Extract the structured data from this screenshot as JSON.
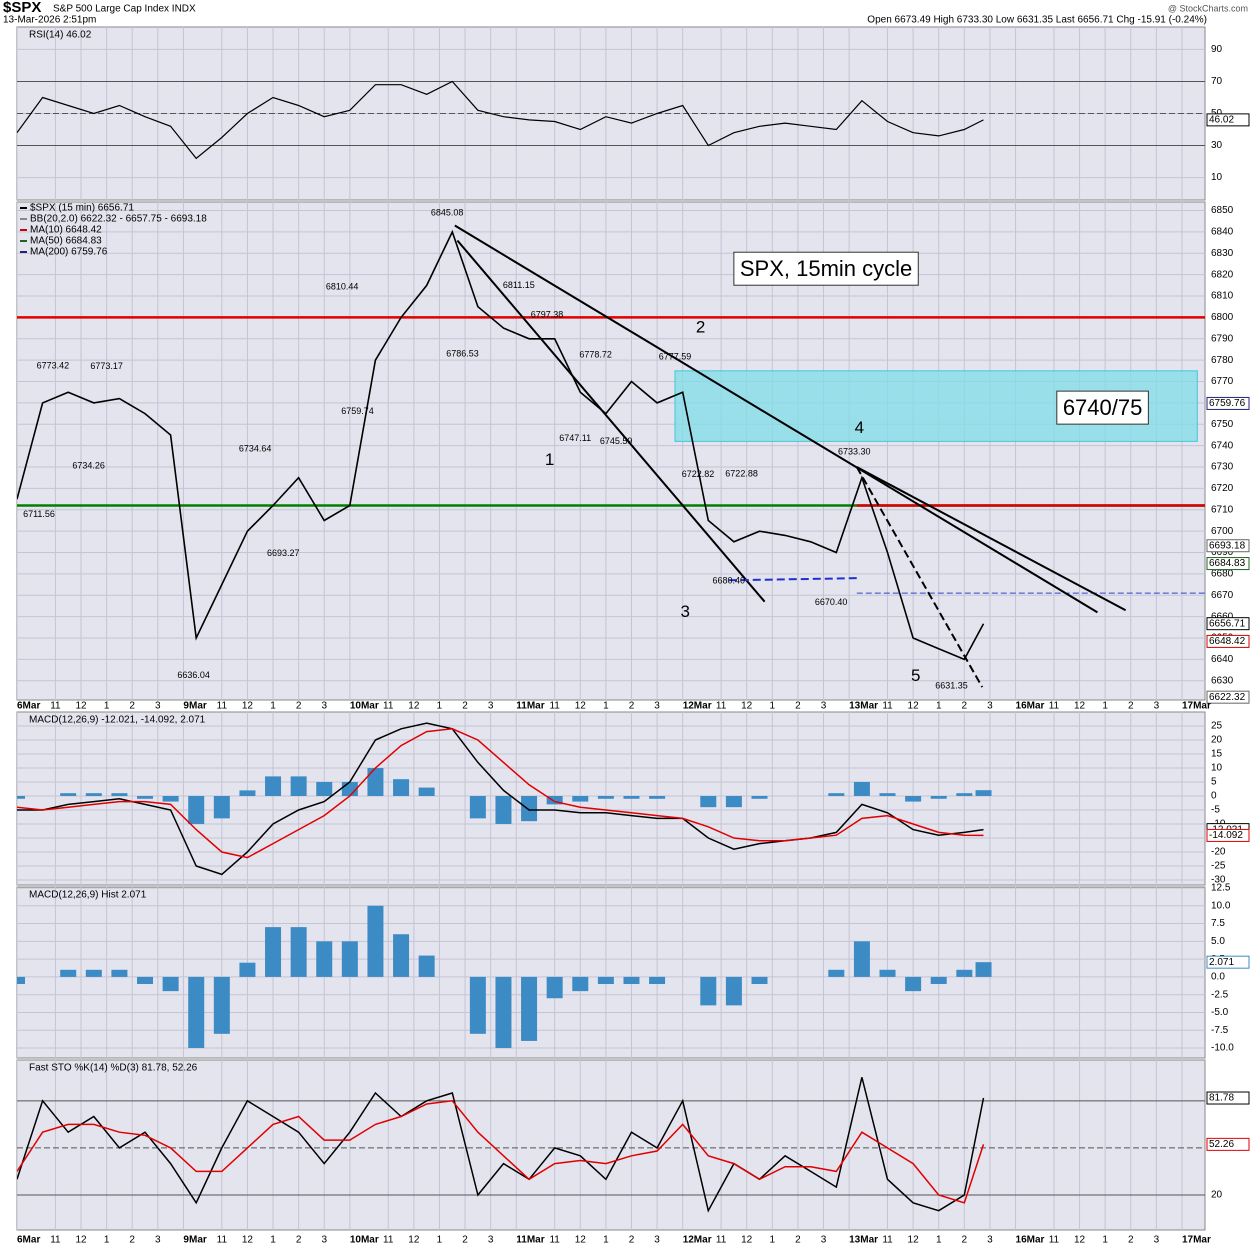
{
  "header": {
    "symbol": "$SPX",
    "name": "S&P 500 Large Cap Index  INDX",
    "date": "13-Mar-2026 2:51pm",
    "quote": "Open 6673.49  High 6733.30  Low 6631.35  Last 6656.71  Chg -15.91 (-0.24%)",
    "credit": "@ StockCharts.com"
  },
  "chart_data": [
    {
      "type": "line",
      "title": "RSI(14) 46.02",
      "xlim": [
        0,
        46.4
      ],
      "ylim": [
        -4,
        104
      ],
      "yticks": [
        10,
        30,
        50,
        70,
        90
      ],
      "color": "#000000",
      "levels": [
        {
          "value": 70,
          "color": "#555555"
        },
        {
          "value": 30,
          "color": "#555555"
        },
        {
          "value": 50,
          "color": "#555555",
          "dash": true
        }
      ],
      "x": [
        0,
        1,
        2,
        3,
        4,
        5,
        6,
        7,
        8,
        9,
        10,
        11,
        12,
        13,
        14,
        15,
        16,
        17,
        18,
        19,
        20,
        21,
        22,
        23,
        24,
        25,
        26,
        27,
        28,
        29,
        30,
        31,
        32,
        33,
        34,
        35,
        36,
        37,
        37.75
      ],
      "values": [
        38,
        60,
        55,
        50,
        55,
        48,
        42,
        22,
        35,
        50,
        60,
        55,
        48,
        52,
        68,
        68,
        62,
        70,
        52,
        48,
        46,
        45,
        40,
        48,
        44,
        50,
        55,
        30,
        38,
        42,
        44,
        42,
        40,
        58,
        45,
        38,
        36,
        40,
        46.02
      ]
    },
    {
      "type": "line",
      "color": "#000000",
      "xlim": [
        0,
        46.4
      ],
      "ylim": [
        6621,
        6854
      ],
      "yticks": [
        6630,
        6640,
        6650,
        6660,
        6670,
        6680,
        6690,
        6700,
        6710,
        6720,
        6730,
        6740,
        6750,
        6760,
        6770,
        6780,
        6790,
        6800,
        6810,
        6820,
        6830,
        6840,
        6850
      ],
      "legend": [
        {
          "text": "$SPX (15 min) 6656.71",
          "color": "#000000"
        },
        {
          "text": "BB(20,2.0) 6622.32 - 6657.75 - 6693.18",
          "color": "#888888"
        },
        {
          "text": "MA(10) 6648.42",
          "color": "#d00000"
        },
        {
          "text": "MA(50) 6684.83",
          "color": "#206020"
        },
        {
          "text": "MA(200) 6759.76",
          "color": "#202080"
        }
      ],
      "xticks": [
        {
          "value": 0,
          "label": "6Mar"
        },
        {
          "value": 1.5,
          "label": "11"
        },
        {
          "value": 2.5,
          "label": "12"
        },
        {
          "value": 3.5,
          "label": "1"
        },
        {
          "value": 4.5,
          "label": "2"
        },
        {
          "value": 5.5,
          "label": "3"
        },
        {
          "value": 6.5,
          "label": "9Mar"
        },
        {
          "value": 8,
          "label": "11"
        },
        {
          "value": 9,
          "label": "12"
        },
        {
          "value": 10,
          "label": "1"
        },
        {
          "value": 11,
          "label": "2"
        },
        {
          "value": 12,
          "label": "3"
        },
        {
          "value": 13,
          "label": "10Mar"
        },
        {
          "value": 14.5,
          "label": "11"
        },
        {
          "value": 15.5,
          "label": "12"
        },
        {
          "value": 16.5,
          "label": "1"
        },
        {
          "value": 17.5,
          "label": "2"
        },
        {
          "value": 18.5,
          "label": "3"
        },
        {
          "value": 19.5,
          "label": "11Mar"
        },
        {
          "value": 21,
          "label": "11"
        },
        {
          "value": 22,
          "label": "12"
        },
        {
          "value": 23,
          "label": "1"
        },
        {
          "value": 24,
          "label": "2"
        },
        {
          "value": 25,
          "label": "3"
        },
        {
          "value": 26,
          "label": "12Mar"
        },
        {
          "value": 27.5,
          "label": "11"
        },
        {
          "value": 28.5,
          "label": "12"
        },
        {
          "value": 29.5,
          "label": "1"
        },
        {
          "value": 30.5,
          "label": "2"
        },
        {
          "value": 31.5,
          "label": "3"
        },
        {
          "value": 32.5,
          "label": "13Mar"
        },
        {
          "value": 34,
          "label": "11"
        },
        {
          "value": 35,
          "label": "12"
        },
        {
          "value": 36,
          "label": "1"
        },
        {
          "value": 37,
          "label": "2"
        },
        {
          "value": 38,
          "label": "3"
        },
        {
          "value": 39,
          "label": "16Mar"
        },
        {
          "value": 40.5,
          "label": "11"
        },
        {
          "value": 41.5,
          "label": "12"
        },
        {
          "value": 42.5,
          "label": "1"
        },
        {
          "value": 43.5,
          "label": "2"
        },
        {
          "value": 44.5,
          "label": "3"
        },
        {
          "value": 45.5,
          "label": "17Mar"
        }
      ],
      "x": [
        0,
        1,
        2,
        3,
        4,
        5,
        6,
        7,
        8,
        9,
        10,
        11,
        12,
        13,
        14,
        15,
        16,
        17,
        18,
        19,
        20,
        21,
        22,
        23,
        24,
        25,
        26,
        27,
        28,
        29,
        30,
        31,
        32,
        33,
        34,
        35,
        36,
        37,
        37.75
      ],
      "values": [
        6715,
        6760,
        6765,
        6760,
        6762,
        6755,
        6745,
        6650,
        6675,
        6700,
        6712,
        6725,
        6705,
        6712,
        6780,
        6800,
        6815,
        6840,
        6805,
        6795,
        6790,
        6790,
        6765,
        6755,
        6770,
        6760,
        6765,
        6705,
        6695,
        6700,
        6698,
        6695,
        6690,
        6725,
        6690,
        6650,
        6645,
        6640,
        6656.71
      ],
      "zone": {
        "x": [
          25.7,
          46.1
        ],
        "values": [
          6742,
          6775
        ]
      },
      "levels": [
        {
          "value": 6800,
          "color": "#e00000"
        },
        {
          "value": 6712,
          "color": "#008000"
        },
        {
          "value": 6712,
          "color": "#e00000",
          "from": 32.8
        },
        {
          "value": 6671,
          "color": "#3040d0",
          "dash": true,
          "from": 32.8
        }
      ],
      "trendlines": [
        {
          "x": [
            17.1,
            42.2
          ],
          "values": [
            6843,
            6662
          ]
        },
        {
          "x": [
            32.8,
            43.3
          ],
          "values": [
            6730,
            6663
          ]
        },
        {
          "x": [
            32.8,
            37.7
          ],
          "values": [
            6730,
            6627
          ],
          "dash": true
        },
        {
          "x": [
            17.2,
            29.2
          ],
          "values": [
            6836,
            6667
          ]
        },
        {
          "x": [
            27.8,
            32.8
          ],
          "values": [
            6677,
            6678
          ],
          "dash": true,
          "color": "#2030d0"
        }
      ],
      "price_labels": [
        {
          "x": 16.8,
          "value": 6845.08,
          "side": "above"
        },
        {
          "x": 12.7,
          "value": 6810.44,
          "side": "above"
        },
        {
          "x": 19.6,
          "value": 6811.15,
          "side": "above"
        },
        {
          "x": 20.7,
          "value": 6797.38,
          "side": "above"
        },
        {
          "x": 17.4,
          "value": 6786.53,
          "side": "below"
        },
        {
          "x": 22.6,
          "value": 6778.72,
          "side": "above"
        },
        {
          "x": 25.7,
          "value": 6777.59,
          "side": "above"
        },
        {
          "x": 1.4,
          "value": 6773.42,
          "side": "above"
        },
        {
          "x": 3.5,
          "value": 6773.17,
          "side": "above"
        },
        {
          "x": 9.3,
          "value": 6734.64,
          "side": "above"
        },
        {
          "x": 2.8,
          "value": 6734.26,
          "side": "below"
        },
        {
          "x": 13.3,
          "value": 6759.74,
          "side": "below"
        },
        {
          "x": 21.8,
          "value": 6747.11,
          "side": "below"
        },
        {
          "x": 23.4,
          "value": 6745.59,
          "side": "below"
        },
        {
          "x": 26.6,
          "value": 6722.82,
          "side": "above"
        },
        {
          "x": 28.3,
          "value": 6722.88,
          "side": "above"
        },
        {
          "x": 32.7,
          "value": 6733.3,
          "label": "6733.30",
          "side": "above"
        },
        {
          "x": 0,
          "value": 6711.56,
          "side": "below"
        },
        {
          "x": 10.4,
          "value": 6693.27,
          "side": "below"
        },
        {
          "x": 27.8,
          "value": 6680.4,
          "label": "6680.40",
          "side": "below"
        },
        {
          "x": 31.8,
          "value": 6670.4,
          "label": "6670.40",
          "side": "below"
        },
        {
          "x": 6.9,
          "value": 6636.04,
          "side": "below"
        },
        {
          "x": 36.5,
          "value": 6631.35,
          "side": "below"
        }
      ],
      "annotations": [
        {
          "text": "1",
          "x": 20.8,
          "y": 6733,
          "color": "#e00000"
        },
        {
          "text": "2",
          "x": 26.7,
          "y": 6795,
          "color": "#e00000"
        },
        {
          "text": "3",
          "x": 26.1,
          "y": 6662,
          "color": "#e00000"
        },
        {
          "text": "4",
          "x": 32.9,
          "y": 6748,
          "color": "#e00000"
        },
        {
          "text": "5",
          "x": 35.1,
          "y": 6632,
          "color": "#e00000"
        },
        {
          "text": "SPX, 15min cycle",
          "x": 31.6,
          "y": 6822,
          "color": "#000000",
          "box": true
        },
        {
          "text": "6740/75",
          "x": 42.4,
          "y": 6757,
          "color": "#000000",
          "box": true
        }
      ],
      "last_labels": [
        {
          "value": 6759.76,
          "color": "#202080"
        },
        {
          "value": 6693.18,
          "color": "#666666"
        },
        {
          "value": 6684.83,
          "color": "#206020"
        },
        {
          "value": 6648.42,
          "color": "#d00000"
        },
        {
          "value": 6622.32,
          "color": "#666666"
        }
      ]
    },
    {
      "type": "line",
      "title": "MACD(12,26,9) -12.021, -14.092, 2.071",
      "xlim": [
        0,
        46.4
      ],
      "ylim": [
        -31.8,
        30
      ],
      "yticks": [
        25,
        20,
        15,
        10,
        5,
        0,
        -5,
        -10,
        -15,
        -20,
        -25,
        -30
      ],
      "x": [
        0,
        1,
        2,
        3,
        4,
        5,
        6,
        7,
        8,
        9,
        10,
        11,
        12,
        13,
        14,
        15,
        16,
        17,
        18,
        19,
        20,
        21,
        22,
        23,
        24,
        25,
        26,
        27,
        28,
        29,
        30,
        31,
        32,
        33,
        34,
        35,
        36,
        37,
        37.75
      ],
      "series": [
        {
          "color": "#000000",
          "values": [
            -5,
            -5,
            -3,
            -2,
            -1,
            -3,
            -5,
            -25,
            -28,
            -20,
            -10,
            -5,
            -2,
            5,
            20,
            24,
            26,
            24,
            12,
            2,
            -5,
            -5,
            -6,
            -6,
            -7,
            -8,
            -8,
            -15,
            -19,
            -17,
            -16,
            -15,
            -13,
            -3,
            -6,
            -12,
            -14,
            -13,
            -12.021
          ]
        },
        {
          "color": "#e00000",
          "values": [
            -4,
            -5,
            -4,
            -3,
            -2,
            -2,
            -3,
            -12,
            -20,
            -22,
            -17,
            -12,
            -7,
            0,
            10,
            18,
            23,
            24,
            20,
            12,
            4,
            -2,
            -4,
            -5,
            -6,
            -7,
            -8,
            -11,
            -15,
            -16,
            -16,
            -15,
            -14,
            -8,
            -7,
            -10,
            -13,
            -14,
            -14.092
          ]
        }
      ]
    },
    {
      "type": "bar",
      "title": "MACD(12,26,9) Hist 2.071",
      "color": "#3d8bc4",
      "xlim": [
        0,
        46.4
      ],
      "ylim": [
        -11.4,
        12.64
      ],
      "yticks": [
        12.5,
        {
          "value": 10,
          "label": "10.0"
        },
        7.5,
        {
          "value": 5,
          "label": "5.0"
        },
        2.5,
        {
          "value": 0,
          "label": "0.0"
        },
        -2.5,
        {
          "value": -5,
          "label": "-5.0"
        },
        -7.5,
        {
          "value": -10,
          "label": "-10.0"
        }
      ],
      "x": [
        0,
        1,
        2,
        3,
        4,
        5,
        6,
        7,
        8,
        9,
        10,
        11,
        12,
        13,
        14,
        15,
        16,
        17,
        18,
        19,
        20,
        21,
        22,
        23,
        24,
        25,
        26,
        27,
        28,
        29,
        30,
        31,
        32,
        33,
        34,
        35,
        36,
        37,
        37.75
      ],
      "values": [
        -1,
        0,
        1,
        1,
        1,
        -1,
        -2,
        -10,
        -8,
        2,
        7,
        7,
        5,
        5,
        10,
        6,
        3,
        0,
        -8,
        -10,
        -9,
        -3,
        -2,
        -1,
        -1,
        -1,
        0,
        -4,
        -4,
        -1,
        0,
        0,
        1,
        5,
        1,
        -2,
        -1,
        1,
        2.071
      ]
    },
    {
      "type": "line",
      "title": "Fast STO %K(14) %D(3) 81.78, 52.26",
      "xlim": [
        0,
        46.4
      ],
      "ylim": [
        -2.3,
        106
      ],
      "yticks": [
        20
      ],
      "levels": [
        {
          "value": 80,
          "color": "#555555"
        },
        {
          "value": 50,
          "color": "#555555",
          "dash": true
        },
        {
          "value": 20,
          "color": "#555555"
        }
      ],
      "x": [
        0,
        1,
        2,
        3,
        4,
        5,
        6,
        7,
        8,
        9,
        10,
        11,
        12,
        13,
        14,
        15,
        16,
        17,
        18,
        19,
        20,
        21,
        22,
        23,
        24,
        25,
        26,
        27,
        28,
        29,
        30,
        31,
        32,
        33,
        34,
        35,
        36,
        37,
        37.75
      ],
      "series": [
        {
          "color": "#000000",
          "values": [
            30,
            80,
            60,
            70,
            50,
            60,
            40,
            15,
            50,
            80,
            70,
            60,
            40,
            60,
            85,
            70,
            80,
            85,
            20,
            40,
            30,
            50,
            45,
            30,
            60,
            50,
            80,
            10,
            40,
            30,
            45,
            35,
            25,
            95,
            30,
            15,
            10,
            20,
            81.78
          ]
        },
        {
          "color": "#e00000",
          "values": [
            35,
            60,
            65,
            65,
            60,
            58,
            50,
            35,
            35,
            50,
            65,
            70,
            55,
            55,
            65,
            70,
            78,
            80,
            60,
            45,
            30,
            40,
            42,
            40,
            45,
            48,
            65,
            45,
            40,
            30,
            38,
            38,
            35,
            60,
            50,
            40,
            20,
            15,
            52.26
          ]
        }
      ]
    }
  ]
}
